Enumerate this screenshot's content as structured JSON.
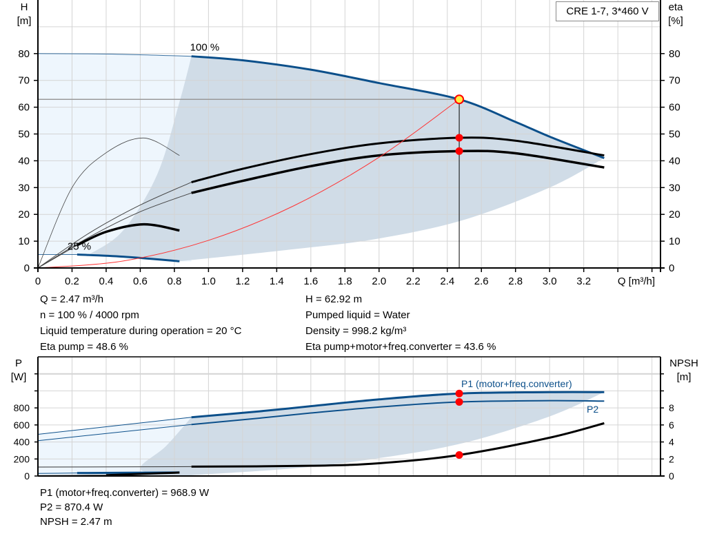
{
  "legend": {
    "title": "CRE 1-7, 3*460 V"
  },
  "info_top": {
    "left": [
      "Q = 2.47 m³/h",
      "n = 100 % / 4000 rpm",
      "Liquid temperature during operation = 20 °C",
      "Eta pump = 48.6 %"
    ],
    "right": [
      "H = 62.92 m",
      "Pumped liquid = Water",
      "Density = 998.2 kg/m³",
      "Eta pump+motor+freq.converter = 43.6 %"
    ]
  },
  "info_bottom": [
    "P1 (motor+freq.converter) = 968.9 W",
    "P2 = 870.4 W",
    "NPSH = 2.47 m"
  ],
  "colors": {
    "head": "#0b4f8a",
    "efficiency": "#000000",
    "system": "#ff3333",
    "area_dark": "#d0dce7",
    "area_light": "#eef6fd",
    "marker": "#ff0000",
    "marker_fill": "#ffee44",
    "grid": "#d4d4d4"
  },
  "chart_data": [
    {
      "type": "line",
      "xlabel": "Q [m³/h]",
      "ylabel": "H\n[m]",
      "ylabel_lines": [
        "H",
        "[m]"
      ],
      "y2label_lines": [
        "eta",
        "[%]"
      ],
      "xlim": [
        0,
        3.65
      ],
      "ylim": [
        0,
        100
      ],
      "y2lim": [
        0,
        100
      ],
      "xticks": [
        "0",
        "0.2",
        "0.4",
        "0.6",
        "0.8",
        "1.0",
        "1.2",
        "1.4",
        "1.6",
        "1.8",
        "2.0",
        "2.2",
        "2.4",
        "2.6",
        "2.8",
        "3.0",
        "3.2"
      ],
      "yticks": [
        "0",
        "10",
        "20",
        "30",
        "40",
        "50",
        "60",
        "70",
        "80"
      ],
      "y2ticks": [
        "0",
        "10",
        "20",
        "30",
        "40",
        "50",
        "60",
        "70",
        "80"
      ],
      "grid": true,
      "annotations": [
        {
          "text": "100 %",
          "x": 0.9,
          "y": 79
        },
        {
          "text": "25 %",
          "x": 0.23,
          "y": 5
        }
      ],
      "duty_point": {
        "Q": 2.47,
        "H": 62.92,
        "eta_pump": 48.6,
        "eta_total": 43.6
      },
      "series": [
        {
          "id": "head-100",
          "axis": "H",
          "thin": [
            [
              0,
              80
            ],
            [
              0.45,
              79.8
            ],
            [
              0.9,
              79
            ]
          ],
          "thick": [
            [
              0.9,
              79
            ],
            [
              1.2,
              77.5
            ],
            [
              1.6,
              74
            ],
            [
              2.0,
              69
            ],
            [
              2.47,
              62.92
            ],
            [
              2.8,
              54.5
            ],
            [
              3.0,
              49
            ],
            [
              3.32,
              41
            ]
          ]
        },
        {
          "id": "head-25",
          "axis": "H",
          "thin": [
            [
              0,
              5
            ],
            [
              0.23,
              5
            ]
          ],
          "thick": [
            [
              0.23,
              5
            ],
            [
              0.5,
              4.2
            ],
            [
              0.83,
              2.5
            ]
          ]
        },
        {
          "id": "eta-pump-100",
          "axis": "eta",
          "thin": [
            [
              0,
              0
            ],
            [
              0.3,
              13
            ],
            [
              0.6,
              23.5
            ],
            [
              0.9,
              32
            ]
          ],
          "thick": [
            [
              0.9,
              32
            ],
            [
              1.2,
              37
            ],
            [
              1.6,
              42.5
            ],
            [
              2.0,
              46.5
            ],
            [
              2.47,
              48.6
            ],
            [
              2.8,
              47.5
            ],
            [
              3.32,
              42
            ]
          ]
        },
        {
          "id": "eta-total-100",
          "axis": "eta",
          "thin": [
            [
              0,
              0
            ],
            [
              0.3,
              11.5
            ],
            [
              0.6,
              21
            ],
            [
              0.9,
              28
            ]
          ],
          "thick": [
            [
              0.9,
              28
            ],
            [
              1.2,
              32.5
            ],
            [
              1.6,
              38
            ],
            [
              2.0,
              42
            ],
            [
              2.47,
              43.6
            ],
            [
              2.8,
              42.8
            ],
            [
              3.32,
              37.5
            ]
          ]
        },
        {
          "id": "eta-pump-25",
          "axis": "eta",
          "thin": [
            [
              0,
              0
            ],
            [
              0.2,
              30
            ],
            [
              0.4,
              43
            ],
            [
              0.62,
              48.5
            ],
            [
              0.83,
              42
            ]
          ],
          "thick": []
        },
        {
          "id": "eta-total-25",
          "axis": "eta",
          "thin": [
            [
              0,
              0
            ],
            [
              0.23,
              8.5
            ]
          ],
          "thick": [
            [
              0.23,
              8.5
            ],
            [
              0.4,
              13.5
            ],
            [
              0.62,
              16.3
            ],
            [
              0.83,
              14
            ]
          ]
        },
        {
          "id": "system-curve",
          "axis": "H",
          "thin": [
            [
              0,
              0
            ],
            [
              0.5,
              2.6
            ],
            [
              1.0,
              10.3
            ],
            [
              1.5,
              23.2
            ],
            [
              2.0,
              41.3
            ],
            [
              2.47,
              62.92
            ]
          ],
          "thick": []
        }
      ]
    },
    {
      "type": "line",
      "ylabel_lines": [
        "P",
        "[W]"
      ],
      "y2label_lines": [
        "NPSH",
        "[m]"
      ],
      "xlim": [
        0,
        3.65
      ],
      "ylim": [
        0,
        1400
      ],
      "y2lim": [
        0,
        14
      ],
      "yticks": [
        "0",
        "200",
        "400",
        "600",
        "800"
      ],
      "y2ticks": [
        "0",
        "2",
        "4",
        "6",
        "8"
      ],
      "grid": true,
      "labels": {
        "p1": "P1 (motor+freq.converter)",
        "p2": "P2"
      },
      "duty_point": {
        "Q": 2.47,
        "P1": 968.9,
        "P2": 870.4,
        "NPSH": 2.47
      },
      "series": [
        {
          "id": "p1-100",
          "axis": "P",
          "thin": [
            [
              0,
              490
            ],
            [
              0.9,
              690
            ]
          ],
          "thick": [
            [
              0.9,
              690
            ],
            [
              1.3,
              760
            ],
            [
              1.6,
              820
            ],
            [
              2.0,
              900
            ],
            [
              2.47,
              968.9
            ],
            [
              3.0,
              985
            ],
            [
              3.32,
              985
            ]
          ]
        },
        {
          "id": "p2-100",
          "axis": "P",
          "thin": [
            [
              0,
              415
            ],
            [
              0.9,
              605
            ]
          ],
          "thick": [
            [
              0.9,
              605
            ],
            [
              1.3,
              680
            ],
            [
              1.6,
              740
            ],
            [
              2.0,
              810
            ],
            [
              2.47,
              870.4
            ],
            [
              3.0,
              885
            ],
            [
              3.32,
              880
            ]
          ]
        },
        {
          "id": "npsh-100",
          "axis": "NPSH",
          "thin": [
            [
              0,
              1.05
            ],
            [
              0.9,
              1.1
            ]
          ],
          "thick": [
            [
              0.9,
              1.1
            ],
            [
              1.6,
              1.2
            ],
            [
              2.0,
              1.5
            ],
            [
              2.47,
              2.47
            ],
            [
              3.0,
              4.5
            ],
            [
              3.32,
              6.2
            ]
          ]
        },
        {
          "id": "p1-25",
          "axis": "P",
          "thin": [
            [
              0,
              30
            ],
            [
              0.23,
              35
            ]
          ],
          "thick": [
            [
              0.23,
              35
            ],
            [
              0.83,
              42
            ]
          ]
        },
        {
          "id": "npsh-25",
          "axis": "NPSH",
          "thin": [
            [
              0,
              0.05
            ],
            [
              0.4,
              0.1
            ]
          ],
          "thick": [
            [
              0.4,
              0.1
            ],
            [
              0.83,
              0.4
            ]
          ]
        }
      ]
    }
  ]
}
